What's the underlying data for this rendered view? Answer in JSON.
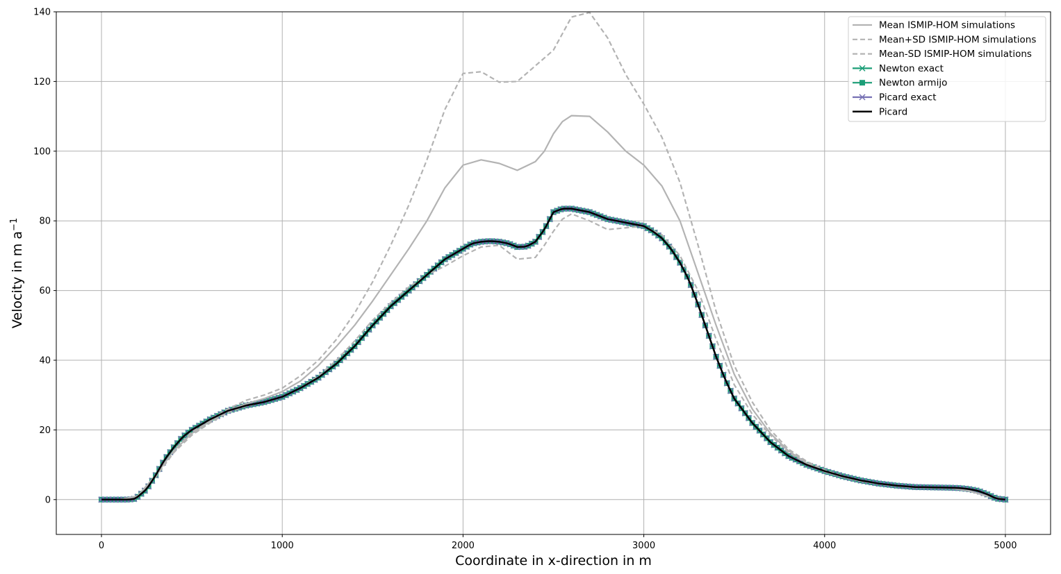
{
  "chart_data": {
    "type": "line",
    "xlabel": "Coordinate in x-direction in m",
    "ylabel": "Velocity in m a",
    "ylabel_sup": "−1",
    "xlim": [
      -250,
      5250
    ],
    "ylim": [
      -10,
      140
    ],
    "xticks": [
      0,
      1000,
      2000,
      3000,
      4000,
      5000
    ],
    "yticks": [
      0,
      20,
      40,
      60,
      80,
      100,
      120,
      140
    ],
    "grid": true,
    "legend_position": "top-right",
    "series": [
      {
        "name": "Mean ISMIP-HOM simulations",
        "color": "#b3b3b3",
        "style": "solid",
        "marker": "none",
        "x": [
          0,
          100,
          200,
          300,
          400,
          500,
          600,
          700,
          800,
          900,
          1000,
          1100,
          1200,
          1300,
          1400,
          1500,
          1600,
          1700,
          1800,
          1900,
          2000,
          2100,
          2200,
          2300,
          2400,
          2450,
          2500,
          2550,
          2600,
          2700,
          2800,
          2900,
          3000,
          3100,
          3200,
          3300,
          3400,
          3500,
          3600,
          3700,
          3800,
          3900,
          4000,
          4100,
          4200,
          4300,
          4400,
          4500,
          4600,
          4700,
          4800,
          4900,
          5000
        ],
        "y": [
          0,
          0,
          1,
          7,
          14,
          19,
          22.5,
          25.5,
          27.5,
          29,
          31,
          34,
          38.5,
          44,
          50,
          57,
          64.5,
          72,
          80,
          89.5,
          96,
          97.5,
          96.5,
          94.5,
          97,
          100,
          105,
          108.5,
          110.2,
          110,
          105.5,
          100,
          96,
          90,
          80,
          65,
          50,
          36,
          26,
          19,
          14,
          10.5,
          8,
          6.5,
          5.3,
          4.5,
          3.9,
          3.5,
          3.4,
          3.3,
          2.5,
          1,
          0
        ]
      },
      {
        "name": "Mean+SD  ISMIP-HOM simulations",
        "color": "#b3b3b3",
        "style": "dashed",
        "marker": "none",
        "x": [
          0,
          100,
          200,
          300,
          400,
          500,
          600,
          700,
          800,
          900,
          1000,
          1100,
          1200,
          1300,
          1400,
          1500,
          1600,
          1700,
          1800,
          1900,
          2000,
          2100,
          2200,
          2300,
          2400,
          2500,
          2600,
          2700,
          2800,
          2900,
          3000,
          3100,
          3200,
          3300,
          3400,
          3500,
          3600,
          3700,
          3800,
          3900,
          4000,
          4100,
          4200,
          4300,
          4400,
          4500,
          4600,
          4700,
          4800,
          4900,
          5000
        ],
        "y": [
          0,
          0,
          1,
          7,
          14,
          19.5,
          23,
          26,
          28.5,
          30,
          32,
          35.5,
          40,
          46,
          53.5,
          62.5,
          73,
          84.5,
          97.5,
          112,
          122.3,
          122.8,
          119.8,
          120,
          124.5,
          129,
          138.5,
          139.8,
          132.5,
          122,
          113.5,
          104,
          91,
          73,
          54,
          38.5,
          28,
          20,
          14.5,
          11,
          8.5,
          6.8,
          5.5,
          4.6,
          4,
          3.6,
          3.4,
          3.3,
          2.5,
          1,
          0
        ]
      },
      {
        "name": "Mean-SD  ISMIP-HOM simulations",
        "color": "#b3b3b3",
        "style": "dashed",
        "marker": "none",
        "x": [
          0,
          100,
          200,
          300,
          400,
          500,
          600,
          700,
          800,
          900,
          1000,
          1100,
          1200,
          1300,
          1400,
          1500,
          1600,
          1700,
          1800,
          1900,
          2000,
          2100,
          2200,
          2250,
          2300,
          2400,
          2450,
          2500,
          2550,
          2600,
          2700,
          2800,
          2900,
          3000,
          3100,
          3200,
          3300,
          3400,
          3500,
          3600,
          3700,
          3800,
          3900,
          4000,
          4100,
          4200,
          4300,
          4400,
          4500,
          4600,
          4700,
          4800,
          4900,
          5000
        ],
        "y": [
          0,
          0,
          1,
          6.5,
          13.5,
          18.5,
          22,
          25,
          26.8,
          28,
          29.5,
          32,
          35.5,
          40,
          45.5,
          51.5,
          56.5,
          61,
          64.5,
          67,
          70,
          72.5,
          73,
          71,
          69,
          69.5,
          73,
          77,
          80.5,
          82,
          80,
          77.5,
          78,
          78.5,
          76,
          70,
          60,
          46,
          33,
          24.5,
          18.5,
          13.5,
          10.5,
          8,
          6.5,
          5.3,
          4.5,
          3.9,
          3.5,
          3.4,
          3.3,
          2.5,
          1,
          0
        ]
      },
      {
        "name": "Newton exact",
        "color": "#1b9e77",
        "style": "solid",
        "marker": "x",
        "ref": "model"
      },
      {
        "name": "Newton armijo",
        "color": "#1b9e77",
        "style": "solid",
        "marker": "square",
        "ref": "model"
      },
      {
        "name": "Picard exact",
        "color": "#7570b3",
        "style": "solid",
        "marker": "x",
        "ref": "model"
      },
      {
        "name": "Picard",
        "color": "#000000",
        "style": "solid",
        "marker": "none",
        "ref": "model"
      }
    ],
    "model_profile": {
      "x": [
        0,
        100,
        150,
        180,
        200,
        250,
        300,
        350,
        400,
        450,
        500,
        600,
        700,
        800,
        900,
        1000,
        1100,
        1200,
        1300,
        1400,
        1500,
        1600,
        1700,
        1800,
        1900,
        2000,
        2050,
        2100,
        2150,
        2200,
        2250,
        2300,
        2350,
        2400,
        2450,
        2500,
        2550,
        2600,
        2650,
        2700,
        2800,
        2900,
        3000,
        3050,
        3100,
        3150,
        3200,
        3250,
        3300,
        3350,
        3400,
        3450,
        3500,
        3600,
        3700,
        3800,
        3900,
        4000,
        4100,
        4200,
        4300,
        4400,
        4500,
        4600,
        4700,
        4750,
        4800,
        4850,
        4900,
        4950,
        5000
      ],
      "y": [
        0,
        0,
        0,
        0.2,
        0.8,
        3,
        7,
        11.5,
        15,
        18,
        20,
        23,
        25.5,
        27,
        28,
        29.5,
        32,
        35,
        39,
        44,
        50,
        55.5,
        60,
        64.5,
        69,
        72,
        73.5,
        74,
        74.2,
        74,
        73.5,
        72.5,
        72.6,
        74,
        77.5,
        82.5,
        83.5,
        83.5,
        83,
        82.5,
        80.5,
        79.5,
        78.5,
        77,
        75,
        72,
        68,
        63,
        56,
        48.5,
        41,
        34.5,
        29,
        22,
        16.5,
        12.5,
        10,
        8.2,
        6.7,
        5.5,
        4.6,
        4,
        3.6,
        3.5,
        3.4,
        3.3,
        3,
        2.5,
        1.5,
        0.3,
        0
      ]
    },
    "marker_step": 20
  }
}
